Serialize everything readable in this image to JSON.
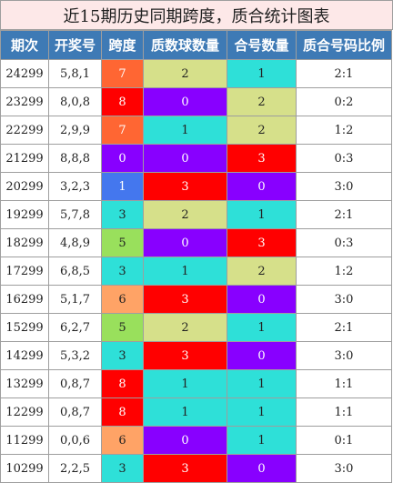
{
  "title": "近15期历史同期跨度，质合统计图表",
  "headers": [
    "期次",
    "开奖号",
    "跨度",
    "质数球数量",
    "合号数量",
    "质合号码比例"
  ],
  "colors": {
    "header_bg": "#3e7ab5",
    "orange_red": "#ff6633",
    "red": "#ff0000",
    "purple": "#8800ff",
    "light_orange": "#ffa366",
    "green": "#99e05c",
    "cyan": "#2ee0d8",
    "blue": "#4477ee",
    "khaki": "#d6e08a",
    "title_bg": "#fde8e8"
  },
  "rows": [
    {
      "issue": "24299",
      "numbers": "5,8,1",
      "span": {
        "value": "7",
        "color": "orange_red"
      },
      "prime": {
        "value": "2",
        "color": "khaki"
      },
      "composite": {
        "value": "1",
        "color": "cyan"
      },
      "ratio": "2:1"
    },
    {
      "issue": "23299",
      "numbers": "8,0,8",
      "span": {
        "value": "8",
        "color": "red"
      },
      "prime": {
        "value": "0",
        "color": "purple"
      },
      "composite": {
        "value": "2",
        "color": "khaki"
      },
      "ratio": "0:2"
    },
    {
      "issue": "22299",
      "numbers": "2,9,9",
      "span": {
        "value": "7",
        "color": "orange_red"
      },
      "prime": {
        "value": "1",
        "color": "cyan"
      },
      "composite": {
        "value": "2",
        "color": "khaki"
      },
      "ratio": "1:2"
    },
    {
      "issue": "21299",
      "numbers": "8,8,8",
      "span": {
        "value": "0",
        "color": "purple"
      },
      "prime": {
        "value": "0",
        "color": "purple"
      },
      "composite": {
        "value": "3",
        "color": "red"
      },
      "ratio": "0:3"
    },
    {
      "issue": "20299",
      "numbers": "3,2,3",
      "span": {
        "value": "1",
        "color": "blue"
      },
      "prime": {
        "value": "3",
        "color": "red"
      },
      "composite": {
        "value": "0",
        "color": "purple"
      },
      "ratio": "3:0"
    },
    {
      "issue": "19299",
      "numbers": "5,7,8",
      "span": {
        "value": "3",
        "color": "cyan"
      },
      "prime": {
        "value": "2",
        "color": "khaki"
      },
      "composite": {
        "value": "1",
        "color": "cyan"
      },
      "ratio": "2:1"
    },
    {
      "issue": "18299",
      "numbers": "4,8,9",
      "span": {
        "value": "5",
        "color": "green"
      },
      "prime": {
        "value": "0",
        "color": "purple"
      },
      "composite": {
        "value": "3",
        "color": "red"
      },
      "ratio": "0:3"
    },
    {
      "issue": "17299",
      "numbers": "6,8,5",
      "span": {
        "value": "3",
        "color": "cyan"
      },
      "prime": {
        "value": "1",
        "color": "cyan"
      },
      "composite": {
        "value": "2",
        "color": "khaki"
      },
      "ratio": "1:2"
    },
    {
      "issue": "16299",
      "numbers": "5,1,7",
      "span": {
        "value": "6",
        "color": "light_orange"
      },
      "prime": {
        "value": "3",
        "color": "red"
      },
      "composite": {
        "value": "0",
        "color": "purple"
      },
      "ratio": "3:0"
    },
    {
      "issue": "15299",
      "numbers": "6,2,7",
      "span": {
        "value": "5",
        "color": "green"
      },
      "prime": {
        "value": "2",
        "color": "khaki"
      },
      "composite": {
        "value": "1",
        "color": "cyan"
      },
      "ratio": "2:1"
    },
    {
      "issue": "14299",
      "numbers": "5,3,2",
      "span": {
        "value": "3",
        "color": "cyan"
      },
      "prime": {
        "value": "3",
        "color": "red"
      },
      "composite": {
        "value": "0",
        "color": "purple"
      },
      "ratio": "3:0"
    },
    {
      "issue": "13299",
      "numbers": "0,8,7",
      "span": {
        "value": "8",
        "color": "red"
      },
      "prime": {
        "value": "1",
        "color": "cyan"
      },
      "composite": {
        "value": "1",
        "color": "cyan"
      },
      "ratio": "1:1"
    },
    {
      "issue": "12299",
      "numbers": "0,8,7",
      "span": {
        "value": "8",
        "color": "red"
      },
      "prime": {
        "value": "1",
        "color": "cyan"
      },
      "composite": {
        "value": "1",
        "color": "cyan"
      },
      "ratio": "1:1"
    },
    {
      "issue": "11299",
      "numbers": "0,0,6",
      "span": {
        "value": "6",
        "color": "light_orange"
      },
      "prime": {
        "value": "0",
        "color": "purple"
      },
      "composite": {
        "value": "1",
        "color": "cyan"
      },
      "ratio": "0:1"
    },
    {
      "issue": "10299",
      "numbers": "2,2,5",
      "span": {
        "value": "3",
        "color": "cyan"
      },
      "prime": {
        "value": "3",
        "color": "red"
      },
      "composite": {
        "value": "0",
        "color": "purple"
      },
      "ratio": "3:0"
    }
  ]
}
